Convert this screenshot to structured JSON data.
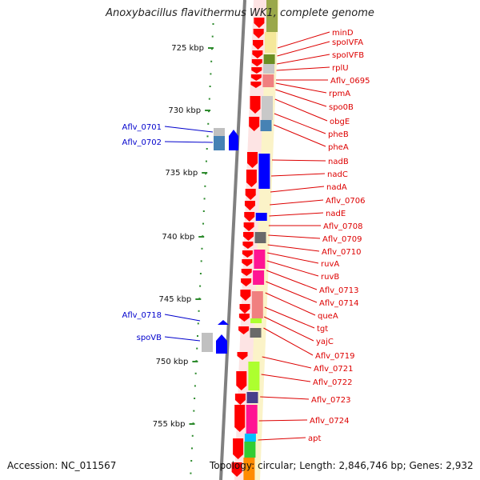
{
  "title": "Anoxybacillus flavithermus WK1, complete genome",
  "footer": {
    "accession": "Accession: NC_011567",
    "topology": "Topology: circular; Length: 2,846,746 bp; Genes: 2,932"
  },
  "colors": {
    "backbone": "#808080",
    "tick": "#2e8b2e",
    "kbp_label": "#111111",
    "plus_strand_gene": "#ff0000",
    "minus_strand_gene": "#0000ff",
    "right_label": "#dd0000",
    "left_label": "#0000cc",
    "leader_right": "#dd0000",
    "leader_left": "#0000cc"
  },
  "kbp_labels": [
    "725 kbp",
    "730 kbp",
    "735 kbp",
    "740 kbp",
    "745 kbp",
    "750 kbp",
    "755 kbp"
  ],
  "right_genes": [
    {
      "name": "minD"
    },
    {
      "name": "spoIVFA"
    },
    {
      "name": "spoIVFB"
    },
    {
      "name": "rplU"
    },
    {
      "name": "Aflv_0695"
    },
    {
      "name": "rpmA"
    },
    {
      "name": "spo0B"
    },
    {
      "name": "obgE"
    },
    {
      "name": "pheB"
    },
    {
      "name": "pheA"
    },
    {
      "name": "nadB"
    },
    {
      "name": "nadC"
    },
    {
      "name": "nadA"
    },
    {
      "name": "Aflv_0706"
    },
    {
      "name": "nadE"
    },
    {
      "name": "Aflv_0708"
    },
    {
      "name": "Aflv_0709"
    },
    {
      "name": "Aflv_0710"
    },
    {
      "name": "ruvA"
    },
    {
      "name": "ruvB"
    },
    {
      "name": "Aflv_0713"
    },
    {
      "name": "Aflv_0714"
    },
    {
      "name": "queA"
    },
    {
      "name": "tgt"
    },
    {
      "name": "yajC"
    },
    {
      "name": "Aflv_0719"
    },
    {
      "name": "Aflv_0721"
    },
    {
      "name": "Aflv_0722"
    },
    {
      "name": "Aflv_0723"
    },
    {
      "name": "Aflv_0724"
    },
    {
      "name": "apt"
    }
  ],
  "left_genes": [
    {
      "name": "Aflv_0701"
    },
    {
      "name": "Aflv_0702"
    },
    {
      "name": "Aflv_0718"
    },
    {
      "name": "spoVB"
    }
  ]
}
